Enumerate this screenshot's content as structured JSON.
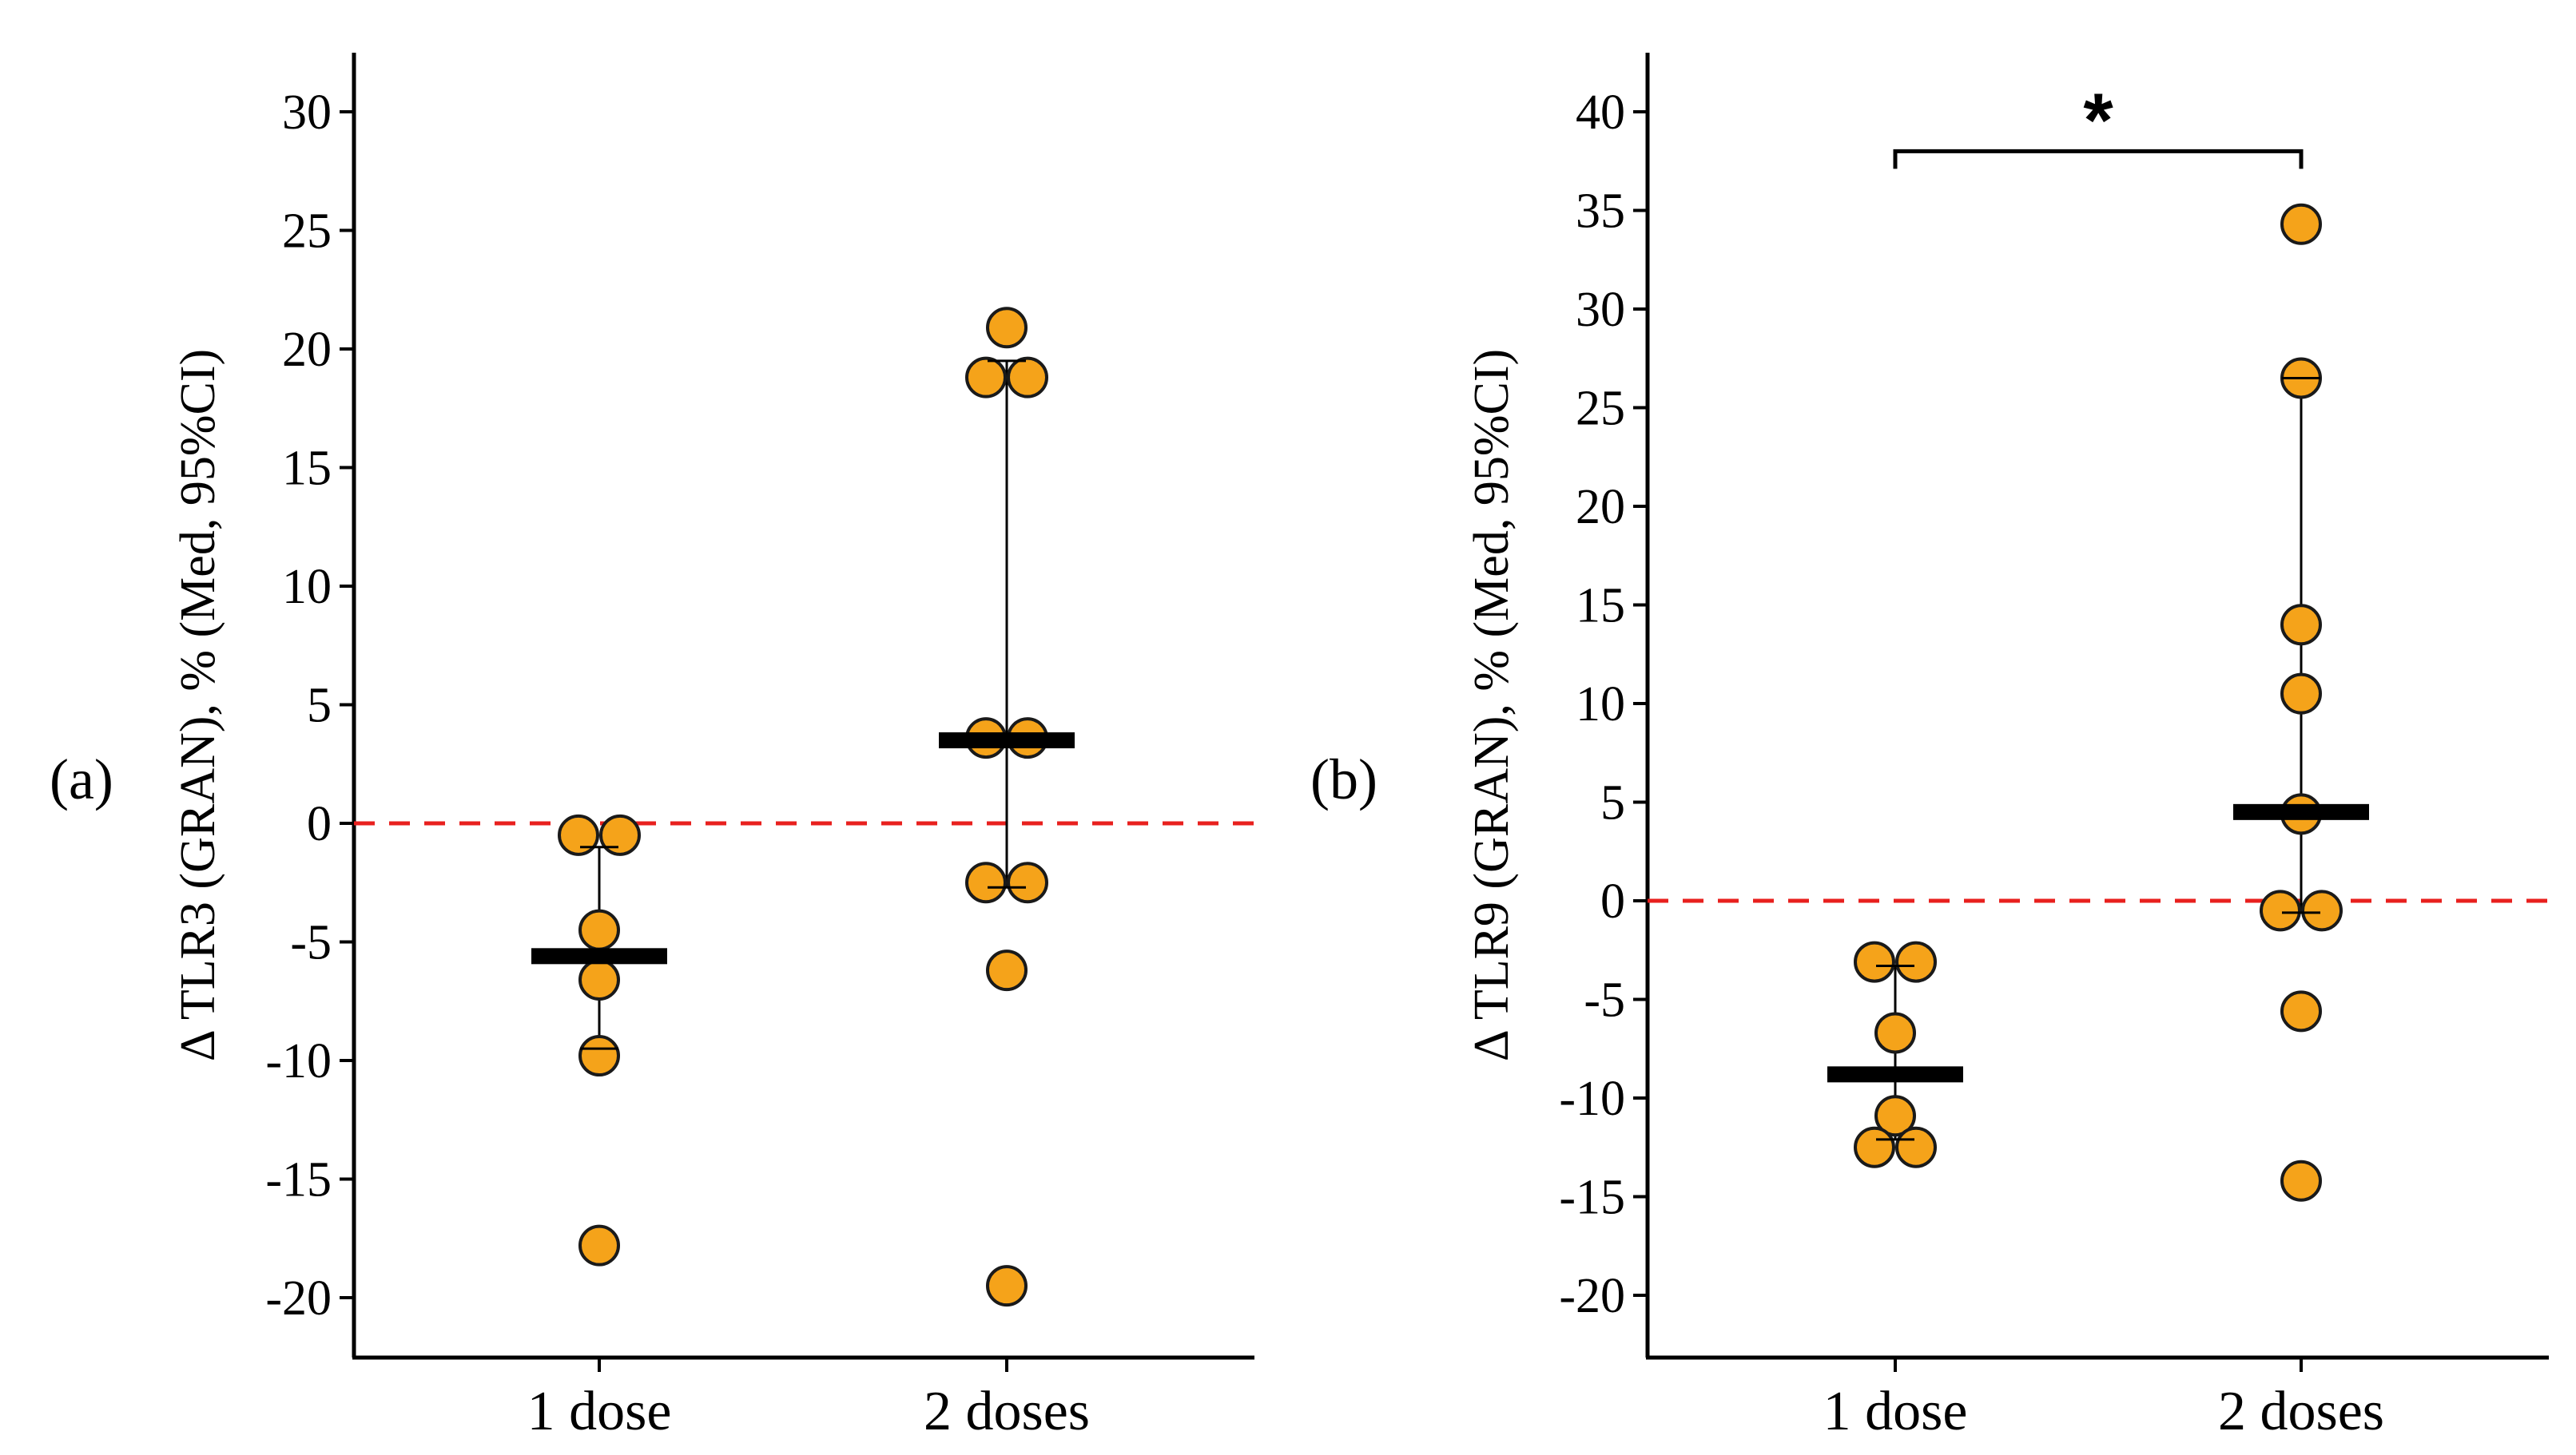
{
  "chart_data": [
    {
      "type": "scatter",
      "panel_label": "(a)",
      "ylabel": "Δ TLR3 (GRAN), % (Med, 95%CI)",
      "categories": [
        "1 dose",
        "2 doses"
      ],
      "ylim": [
        -22.5,
        32.5
      ],
      "yticks": [
        30,
        25,
        20,
        15,
        10,
        5,
        0,
        -5,
        -10,
        -15,
        -20
      ],
      "ytick_labels": [
        "30",
        "25",
        "20",
        "15",
        "10",
        "5",
        "0",
        "-5",
        "-10",
        "-15",
        "-20"
      ],
      "reference_line": 0,
      "groups": [
        {
          "category": "1 dose",
          "points": [
            {
              "offset": -0.5,
              "y": -0.5
            },
            {
              "offset": 0.5,
              "y": -0.5
            },
            {
              "offset": 0,
              "y": -4.5
            },
            {
              "offset": 0,
              "y": -6.6
            },
            {
              "offset": 0,
              "y": -9.8
            },
            {
              "offset": 0,
              "y": -17.8
            }
          ],
          "median": -5.6,
          "ci": [
            -9.5,
            -1.0
          ]
        },
        {
          "category": "2 doses",
          "points": [
            {
              "offset": 0,
              "y": 20.9
            },
            {
              "offset": -0.5,
              "y": 18.8
            },
            {
              "offset": 0.5,
              "y": 18.8
            },
            {
              "offset": -0.5,
              "y": 3.6
            },
            {
              "offset": 0.5,
              "y": 3.6
            },
            {
              "offset": -0.5,
              "y": -2.5
            },
            {
              "offset": 0.5,
              "y": -2.5
            },
            {
              "offset": 0,
              "y": -6.2
            },
            {
              "offset": 0,
              "y": -19.5
            }
          ],
          "median": 3.5,
          "ci": [
            -2.7,
            19.5
          ]
        }
      ],
      "significance": null,
      "colors": {
        "point_fill": "#F5A31A",
        "point_stroke": "#1a1a1a",
        "reference": "#E8201E",
        "median": "#000000"
      }
    },
    {
      "type": "scatter",
      "panel_label": "(b)",
      "ylabel": "Δ TLR9 (GRAN), % (Med, 95%CI)",
      "categories": [
        "1 dose",
        "2 doses"
      ],
      "ylim": [
        -23,
        43
      ],
      "yticks": [
        40,
        35,
        30,
        25,
        20,
        15,
        10,
        5,
        0,
        -5,
        -10,
        -15,
        -20
      ],
      "ytick_labels": [
        "40",
        "35",
        "30",
        "25",
        "20",
        "15",
        "10",
        "5",
        "0",
        "-5",
        "-10",
        "-15",
        "-20"
      ],
      "reference_line": 0,
      "groups": [
        {
          "category": "1 dose",
          "points": [
            {
              "offset": -0.5,
              "y": -3.1
            },
            {
              "offset": 0.5,
              "y": -3.1
            },
            {
              "offset": 0,
              "y": -6.7
            },
            {
              "offset": 0,
              "y": -10.9
            },
            {
              "offset": -0.5,
              "y": -12.5
            },
            {
              "offset": 0.5,
              "y": -12.5
            }
          ],
          "median": -8.8,
          "ci": [
            -12.1,
            -3.3
          ]
        },
        {
          "category": "2 doses",
          "points": [
            {
              "offset": 0,
              "y": 34.3
            },
            {
              "offset": 0,
              "y": 26.5
            },
            {
              "offset": 0,
              "y": 14.0
            },
            {
              "offset": 0,
              "y": 10.5
            },
            {
              "offset": 0,
              "y": 4.4
            },
            {
              "offset": -0.5,
              "y": -0.5
            },
            {
              "offset": 0.5,
              "y": -0.5
            },
            {
              "offset": 0,
              "y": -5.6
            },
            {
              "offset": 0,
              "y": -14.2
            }
          ],
          "median": 4.5,
          "ci": [
            -0.6,
            26.5
          ]
        }
      ],
      "significance": {
        "from": "1 dose",
        "to": "2 doses",
        "y": 38,
        "label": "*"
      },
      "colors": {
        "point_fill": "#F5A31A",
        "point_stroke": "#1a1a1a",
        "reference": "#E8201E",
        "median": "#000000"
      }
    }
  ]
}
